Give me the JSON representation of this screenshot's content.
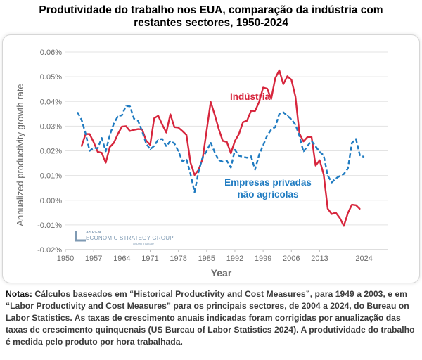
{
  "title": "Produtividade do trabalho nos EUA, comparação da indústria com restantes sectores, 1950-2024",
  "notes": {
    "label": "Notas:",
    "text": "Cálculos baseados em “Historical Productivity and Cost Measures”, para 1949 a 2003, e em “Labor Productivity and Cost Measures” para os principais sectores, de 2004 a 2024, do Bureau on Labor Statistics. As taxas de crescimento anuais indicadas foram corrigidas por anualização das taxas de crescimento quinquenais (US Bureau of Labor Statistics 2024). A produtividade do trabalho é medida pelo produto por hora trabalhada."
  },
  "logo": {
    "line1": "ASPEN",
    "line2": "ECONOMIC STRATEGY GROUP",
    "line3": "Aspen Institute"
  },
  "colors": {
    "industry": "#d7263d",
    "private": "#1f7bc1",
    "axis_text": "#6b6b6b",
    "grid": "#e3e3e3",
    "logo": "#7f9ab3"
  },
  "chart_data": {
    "type": "line",
    "title": "Produtividade do trabalho nos EUA, comparação da indústria com restantes sectores, 1950-2024",
    "xlabel": "Year",
    "ylabel": "Annualized productivity growth rate",
    "xlim": [
      1950,
      2030
    ],
    "ylim": [
      -0.02,
      0.06
    ],
    "x_ticks": [
      1950,
      1957,
      1964,
      1971,
      1978,
      1985,
      1992,
      1999,
      2006,
      2013,
      2024
    ],
    "x_tick_labels": [
      "1950",
      "1957",
      "1964",
      "1971",
      "1978",
      "1985",
      "1992",
      "1999",
      "2006",
      "2013",
      "2024"
    ],
    "y_ticks": [
      -0.02,
      -0.01,
      0,
      0.01,
      0.02,
      0.03,
      0.04,
      0.05,
      0.06
    ],
    "y_tick_labels": [
      "-0.02%",
      "-0.01%",
      "0.00%",
      "0.01%",
      "0.02%",
      "0.03%",
      "0.04%",
      "0.05%",
      "0.06%"
    ],
    "grid": "horizontal",
    "series": [
      {
        "name": "Indústria",
        "style": "solid",
        "x": [
          1954,
          1955,
          1956,
          1957,
          1958,
          1959,
          1960,
          1961,
          1962,
          1963,
          1964,
          1965,
          1966,
          1967,
          1968,
          1969,
          1970,
          1971,
          1972,
          1973,
          1974,
          1975,
          1976,
          1977,
          1978,
          1979,
          1980,
          1981,
          1982,
          1983,
          1984,
          1985,
          1986,
          1987,
          1988,
          1989,
          1990,
          1991,
          1992,
          1993,
          1994,
          1995,
          1996,
          1997,
          1998,
          1999,
          2000,
          2001,
          2002,
          2003,
          2004,
          2005,
          2006,
          2007,
          2008,
          2009,
          2010,
          2011,
          2012,
          2013,
          2014,
          2015,
          2016,
          2017,
          2018,
          2019,
          2020,
          2021,
          2022,
          2023,
          2024
        ],
        "values": [
          0.0218,
          0.0268,
          0.0268,
          0.0235,
          0.0196,
          0.0192,
          0.0152,
          0.0215,
          0.0232,
          0.0268,
          0.0298,
          0.03,
          0.028,
          0.0285,
          0.0288,
          0.0287,
          0.0242,
          0.0224,
          0.0332,
          0.0342,
          0.0306,
          0.0274,
          0.0348,
          0.0296,
          0.0294,
          0.028,
          0.0264,
          0.0152,
          0.0102,
          0.0123,
          0.0168,
          0.0282,
          0.0398,
          0.0346,
          0.0288,
          0.024,
          0.0236,
          0.019,
          0.024,
          0.0268,
          0.0316,
          0.0322,
          0.0362,
          0.0361,
          0.0398,
          0.0456,
          0.0452,
          0.041,
          0.0494,
          0.0526,
          0.047,
          0.0502,
          0.0488,
          0.042,
          0.027,
          0.0238,
          0.0256,
          0.0256,
          0.014,
          0.0162,
          0.0104,
          -0.0034,
          -0.0056,
          -0.005,
          -0.0072,
          -0.0104,
          -0.0052,
          -0.0018,
          -0.002,
          -0.0036,
          null
        ]
      },
      {
        "name": "Empresas privadas não agrícolas",
        "style": "dashed",
        "x": [
          1953,
          1954,
          1955,
          1956,
          1957,
          1958,
          1959,
          1960,
          1961,
          1962,
          1963,
          1964,
          1965,
          1966,
          1967,
          1968,
          1969,
          1970,
          1971,
          1972,
          1973,
          1974,
          1975,
          1976,
          1977,
          1978,
          1979,
          1980,
          1981,
          1982,
          1983,
          1984,
          1985,
          1986,
          1987,
          1988,
          1989,
          1990,
          1991,
          1992,
          1993,
          1994,
          1995,
          1996,
          1997,
          1998,
          1999,
          2000,
          2001,
          2002,
          2003,
          2004,
          2005,
          2006,
          2007,
          2008,
          2009,
          2010,
          2011,
          2012,
          2013,
          2014,
          2015,
          2016,
          2017,
          2018,
          2019,
          2020,
          2021,
          2022,
          2023,
          2024
        ],
        "values": [
          0.0356,
          0.0326,
          0.027,
          0.02,
          0.0212,
          0.021,
          0.0252,
          0.0198,
          0.0264,
          0.031,
          0.034,
          0.0344,
          0.0382,
          0.038,
          0.033,
          0.0322,
          0.028,
          0.023,
          0.0206,
          0.022,
          0.0246,
          0.0248,
          0.0218,
          0.024,
          0.023,
          0.0198,
          0.0158,
          0.0166,
          0.0106,
          0.0032,
          0.0116,
          0.0174,
          0.0198,
          0.0234,
          0.0194,
          0.0162,
          0.0156,
          0.016,
          0.0132,
          0.0204,
          0.018,
          0.0176,
          0.0172,
          0.0178,
          0.0124,
          0.0184,
          0.0222,
          0.0262,
          0.0286,
          0.0296,
          0.035,
          0.0356,
          0.0342,
          0.0328,
          0.0306,
          0.026,
          0.0196,
          0.022,
          0.024,
          0.0218,
          0.0196,
          0.0182,
          0.01,
          0.0072,
          0.0088,
          0.0098,
          0.0106,
          0.0128,
          0.0232,
          0.0248,
          0.018,
          0.0176
        ]
      }
    ],
    "annotations": [
      {
        "series": "Indústria",
        "text": "Indústria"
      },
      {
        "series": "Empresas privadas não agrícolas",
        "text": "Empresas privadas\nnão agrícolas"
      }
    ]
  }
}
